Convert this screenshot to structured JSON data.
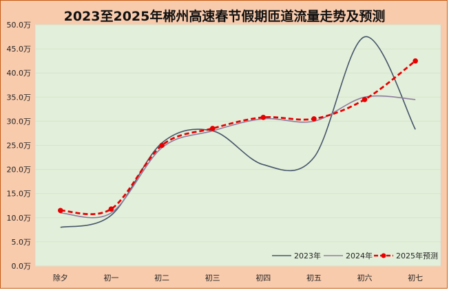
{
  "chart_data": {
    "type": "line",
    "title": "2023至2025年郴州高速春节假期匝道流量走势及预测",
    "categories": [
      "除夕",
      "初一",
      "初二",
      "初三",
      "初四",
      "初五",
      "初六",
      "初七"
    ],
    "yticks": [
      "0.0万",
      "5.0万",
      "10.0万",
      "15.0万",
      "20.0万",
      "25.0万",
      "30.0万",
      "35.0万",
      "40.0万",
      "45.0万",
      "50.0万"
    ],
    "ylim": [
      0,
      50
    ],
    "unit": "万",
    "grid": true,
    "legend_position": "bottom-right",
    "plot_background": "#e2efda",
    "series": [
      {
        "name": "2023年",
        "values": [
          8.0,
          10.5,
          25.5,
          28.0,
          21.0,
          22.5,
          47.5,
          28.3
        ],
        "color": "#44546a",
        "dashed": false,
        "markers": false
      },
      {
        "name": "2024年",
        "values": [
          11.0,
          11.0,
          24.5,
          28.0,
          30.5,
          30.0,
          35.0,
          34.5
        ],
        "color": "#8e7ca0",
        "dashed": false,
        "markers": false
      },
      {
        "name": "2025年预测",
        "values": [
          11.5,
          11.8,
          25.0,
          28.5,
          30.8,
          30.5,
          34.5,
          42.5
        ],
        "color": "#e60000",
        "dashed": true,
        "markers": true
      }
    ]
  }
}
